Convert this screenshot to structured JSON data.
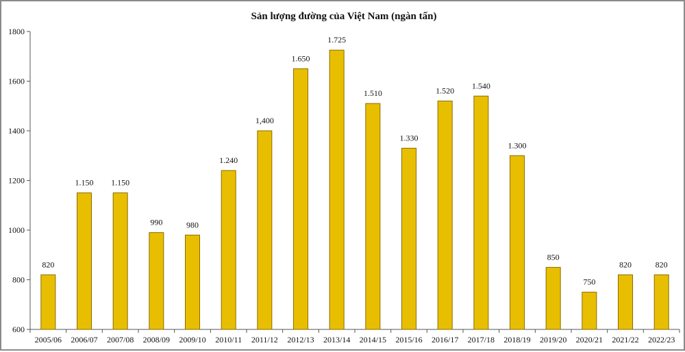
{
  "chart_data": {
    "type": "bar",
    "title": "Sản lượng đường của Việt Nam (ngàn tấn)",
    "xlabel": "",
    "ylabel": "",
    "ylim": [
      600,
      1800
    ],
    "yticks": [
      600,
      800,
      1000,
      1200,
      1400,
      1600,
      1800
    ],
    "categories": [
      "2005/06",
      "2006/07",
      "2007/08",
      "2008/09",
      "2009/10",
      "2010/11",
      "2011/12",
      "2012/13",
      "2013/14",
      "2014/15",
      "2015/16",
      "2016/17",
      "2017/18",
      "2018/19",
      "2019/20",
      "2020/21",
      "2021/22",
      "2022/23"
    ],
    "values": [
      820,
      1150,
      1150,
      990,
      980,
      1240,
      1400,
      1650,
      1725,
      1510,
      1330,
      1520,
      1540,
      1300,
      850,
      750,
      820,
      820
    ],
    "data_labels": [
      "820",
      "1.150",
      "1.150",
      "990",
      "980",
      "1.240",
      "1,400",
      "1.650",
      "1.725",
      "1.510",
      "1.330",
      "1.520",
      "1.540",
      "1.300",
      "850",
      "750",
      "820",
      "820"
    ],
    "bar_color": "#E8BF00",
    "bar_edge_color": "#8B6A00",
    "grid": false,
    "legend": "none"
  }
}
